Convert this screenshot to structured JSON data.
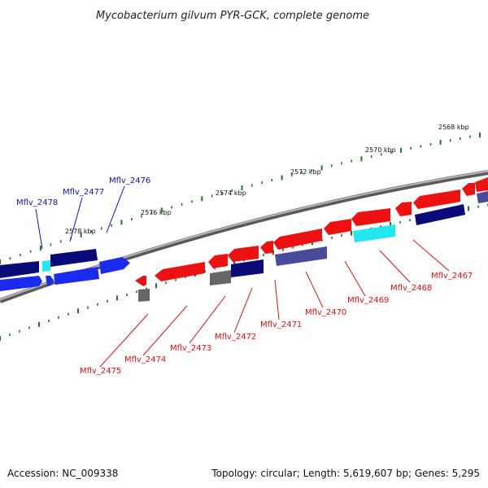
{
  "title": "Mycobacterium gilvum PYR-GCK, complete genome",
  "footer": {
    "accession": "Accession: NC_009338",
    "summary": "Topology: circular; Length: 5,619,607 bp; Genes: 5,295"
  },
  "colors": {
    "backbone": "#7a7a7a",
    "ticks": "#1d7a1d",
    "label_forward": "#1010c8",
    "label_reverse": "#e01010",
    "gene_red": "#ee1111",
    "gene_blue": "#1a2aee",
    "gene_navy": "#0a0a78",
    "gene_cyan": "#22e6f0",
    "gene_gray": "#666666",
    "gene_slate": "#4a4a9a"
  },
  "scale_labels": [
    {
      "id": "2568",
      "text": "2568 kbp"
    },
    {
      "id": "2570",
      "text": "2570 kbp"
    },
    {
      "id": "2572",
      "text": "2572 kbp"
    },
    {
      "id": "2574",
      "text": "2574 kbp"
    },
    {
      "id": "2576",
      "text": "2576 kbp"
    },
    {
      "id": "2578",
      "text": "2578 kbp"
    }
  ],
  "gene_labels": [
    {
      "id": "2478",
      "text": "Mflv_2478",
      "strand": "forward"
    },
    {
      "id": "2477",
      "text": "Mflv_2477",
      "strand": "forward"
    },
    {
      "id": "2476",
      "text": "Mflv_2476",
      "strand": "forward"
    },
    {
      "id": "2475",
      "text": "Mflv_2475",
      "strand": "reverse"
    },
    {
      "id": "2474",
      "text": "Mflv_2474",
      "strand": "reverse"
    },
    {
      "id": "2473",
      "text": "Mflv_2473",
      "strand": "reverse"
    },
    {
      "id": "2472",
      "text": "Mflv_2472",
      "strand": "reverse"
    },
    {
      "id": "2471",
      "text": "Mflv_2471",
      "strand": "reverse"
    },
    {
      "id": "2470",
      "text": "Mflv_2470",
      "strand": "reverse"
    },
    {
      "id": "2469",
      "text": "Mflv_2469",
      "strand": "reverse"
    },
    {
      "id": "2468",
      "text": "Mflv_2468",
      "strand": "reverse"
    },
    {
      "id": "2467",
      "text": "Mflv_2467",
      "strand": "reverse"
    }
  ]
}
